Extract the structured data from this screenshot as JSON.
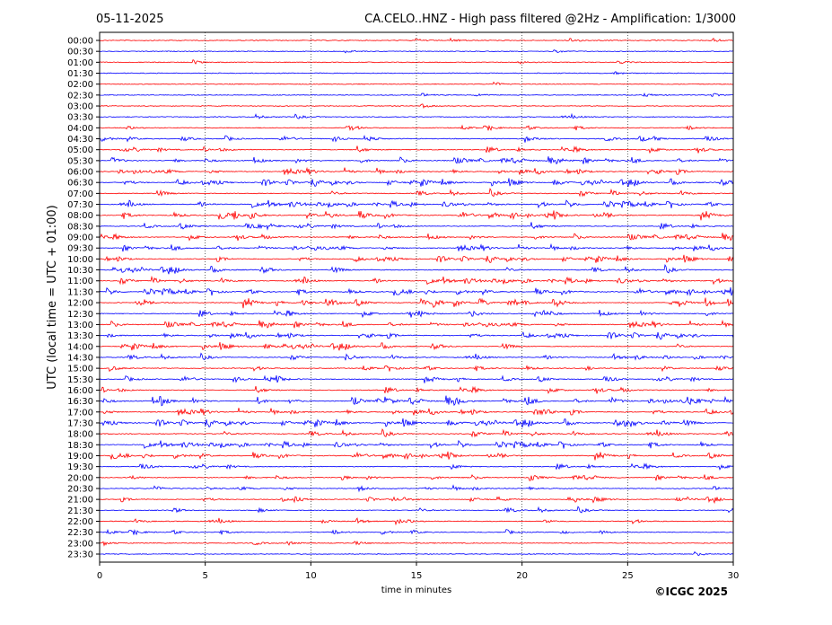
{
  "header": {
    "date": "05-11-2025",
    "title": "CA.CELO..HNZ - High pass filtered @2Hz - Amplification: 1/3000"
  },
  "copyright": "©ICGC 2025",
  "colors": {
    "red_trace": "#ff0000",
    "blue_trace": "#0000ff",
    "grid": "#000000"
  },
  "chart_data": {
    "type": "line",
    "xlabel": "time in minutes",
    "ylabel": "UTC (local time = UTC + 01:00)",
    "xlim": [
      0,
      30
    ],
    "x_ticks": [
      "0",
      "5",
      "10",
      "15",
      "20",
      "25",
      "30"
    ],
    "x_tick_values": [
      0,
      5,
      10,
      15,
      20,
      25,
      30
    ],
    "vertical_gridlines_at": [
      5,
      10,
      15,
      20,
      25
    ],
    "row_labels": [
      "00:00",
      "00:30",
      "01:00",
      "01:30",
      "02:00",
      "02:30",
      "03:00",
      "03:30",
      "04:00",
      "04:30",
      "05:00",
      "05:30",
      "06:00",
      "06:30",
      "07:00",
      "07:30",
      "08:00",
      "08:30",
      "09:00",
      "09:30",
      "10:00",
      "10:30",
      "11:00",
      "11:30",
      "12:00",
      "12:30",
      "13:00",
      "13:30",
      "14:00",
      "14:30",
      "15:00",
      "15:30",
      "16:00",
      "16:30",
      "17:00",
      "17:30",
      "18:00",
      "18:30",
      "19:00",
      "19:30",
      "20:00",
      "20:30",
      "21:00",
      "21:30",
      "22:00",
      "22:30",
      "23:00",
      "23:30"
    ],
    "row_colors": [
      "red",
      "blue",
      "red",
      "blue",
      "red",
      "blue",
      "red",
      "blue",
      "red",
      "blue",
      "red",
      "blue",
      "red",
      "blue",
      "red",
      "blue",
      "red",
      "blue",
      "red",
      "blue",
      "red",
      "blue",
      "red",
      "blue",
      "red",
      "blue",
      "red",
      "blue",
      "red",
      "blue",
      "red",
      "blue",
      "red",
      "blue",
      "red",
      "blue",
      "red",
      "blue",
      "red",
      "blue",
      "red",
      "blue",
      "red",
      "blue",
      "red",
      "blue",
      "red",
      "blue"
    ],
    "row_activity_level": [
      0.05,
      0.05,
      0.05,
      0.05,
      0.08,
      0.08,
      0.05,
      0.08,
      0.2,
      0.35,
      0.45,
      0.5,
      0.55,
      0.55,
      0.5,
      0.6,
      0.65,
      0.5,
      0.5,
      0.5,
      0.5,
      0.55,
      0.6,
      0.55,
      0.75,
      0.6,
      0.5,
      0.55,
      0.5,
      0.35,
      0.35,
      0.4,
      0.5,
      0.8,
      0.6,
      0.6,
      0.5,
      0.6,
      0.5,
      0.4,
      0.35,
      0.3,
      0.3,
      0.3,
      0.25,
      0.2,
      0.1,
      0.08
    ]
  }
}
